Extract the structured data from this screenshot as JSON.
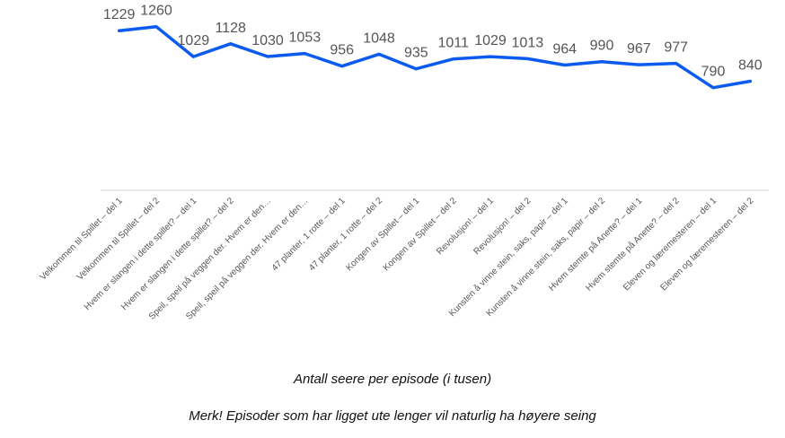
{
  "chart_data": {
    "type": "line",
    "categories": [
      "Velkommen til Spillet – del 1",
      "Velkommen til Spillet – del 2",
      "Hvem er slangen i dette spillet? – del 1",
      "Hvem er slangen i dette spillet? – del 2",
      "Speil, speil på veggen der. Hvem er den…",
      "Speil, speil på veggen der. Hvem er den…",
      "47 planter, 1 rotte – del 1",
      "47 planter, 1 rotte – del 2",
      "Kongen av Spillet – del 1",
      "Kongen av Spillet – del 2",
      "Revolusjon! – del 1",
      "Revolusjon! – del 2",
      "Kunsten å vinne stein, saks, papir – del 1",
      "Kunsten å vinne stein, saks, papir – del 2",
      "Hvem stemte på Anette? – del 1",
      "Hvem stemte på Anette? – del 2",
      "Eleven og læremesteren – del 1",
      "Eleven og læremesteren – del 2"
    ],
    "values": [
      1229,
      1260,
      1029,
      1128,
      1030,
      1053,
      956,
      1048,
      935,
      1011,
      1029,
      1013,
      964,
      990,
      967,
      977,
      790,
      840
    ],
    "data_labels": [
      "1229",
      "1260",
      "1029",
      "1128",
      "1030",
      "1053",
      "956",
      "1048",
      "935",
      "1011",
      "1029",
      "1013",
      "964",
      "990",
      "967",
      "977",
      "790",
      "840"
    ],
    "ylim": [
      0,
      1600
    ],
    "grid": false,
    "line_color": "#0b5bf0",
    "label_color": "#555555",
    "axis_color": "#d9d9d9"
  },
  "captions": {
    "title": "Antall seere per episode (i tusen)",
    "note": "Merk! Episoder som har ligget ute lenger vil naturlig ha høyere seing"
  }
}
